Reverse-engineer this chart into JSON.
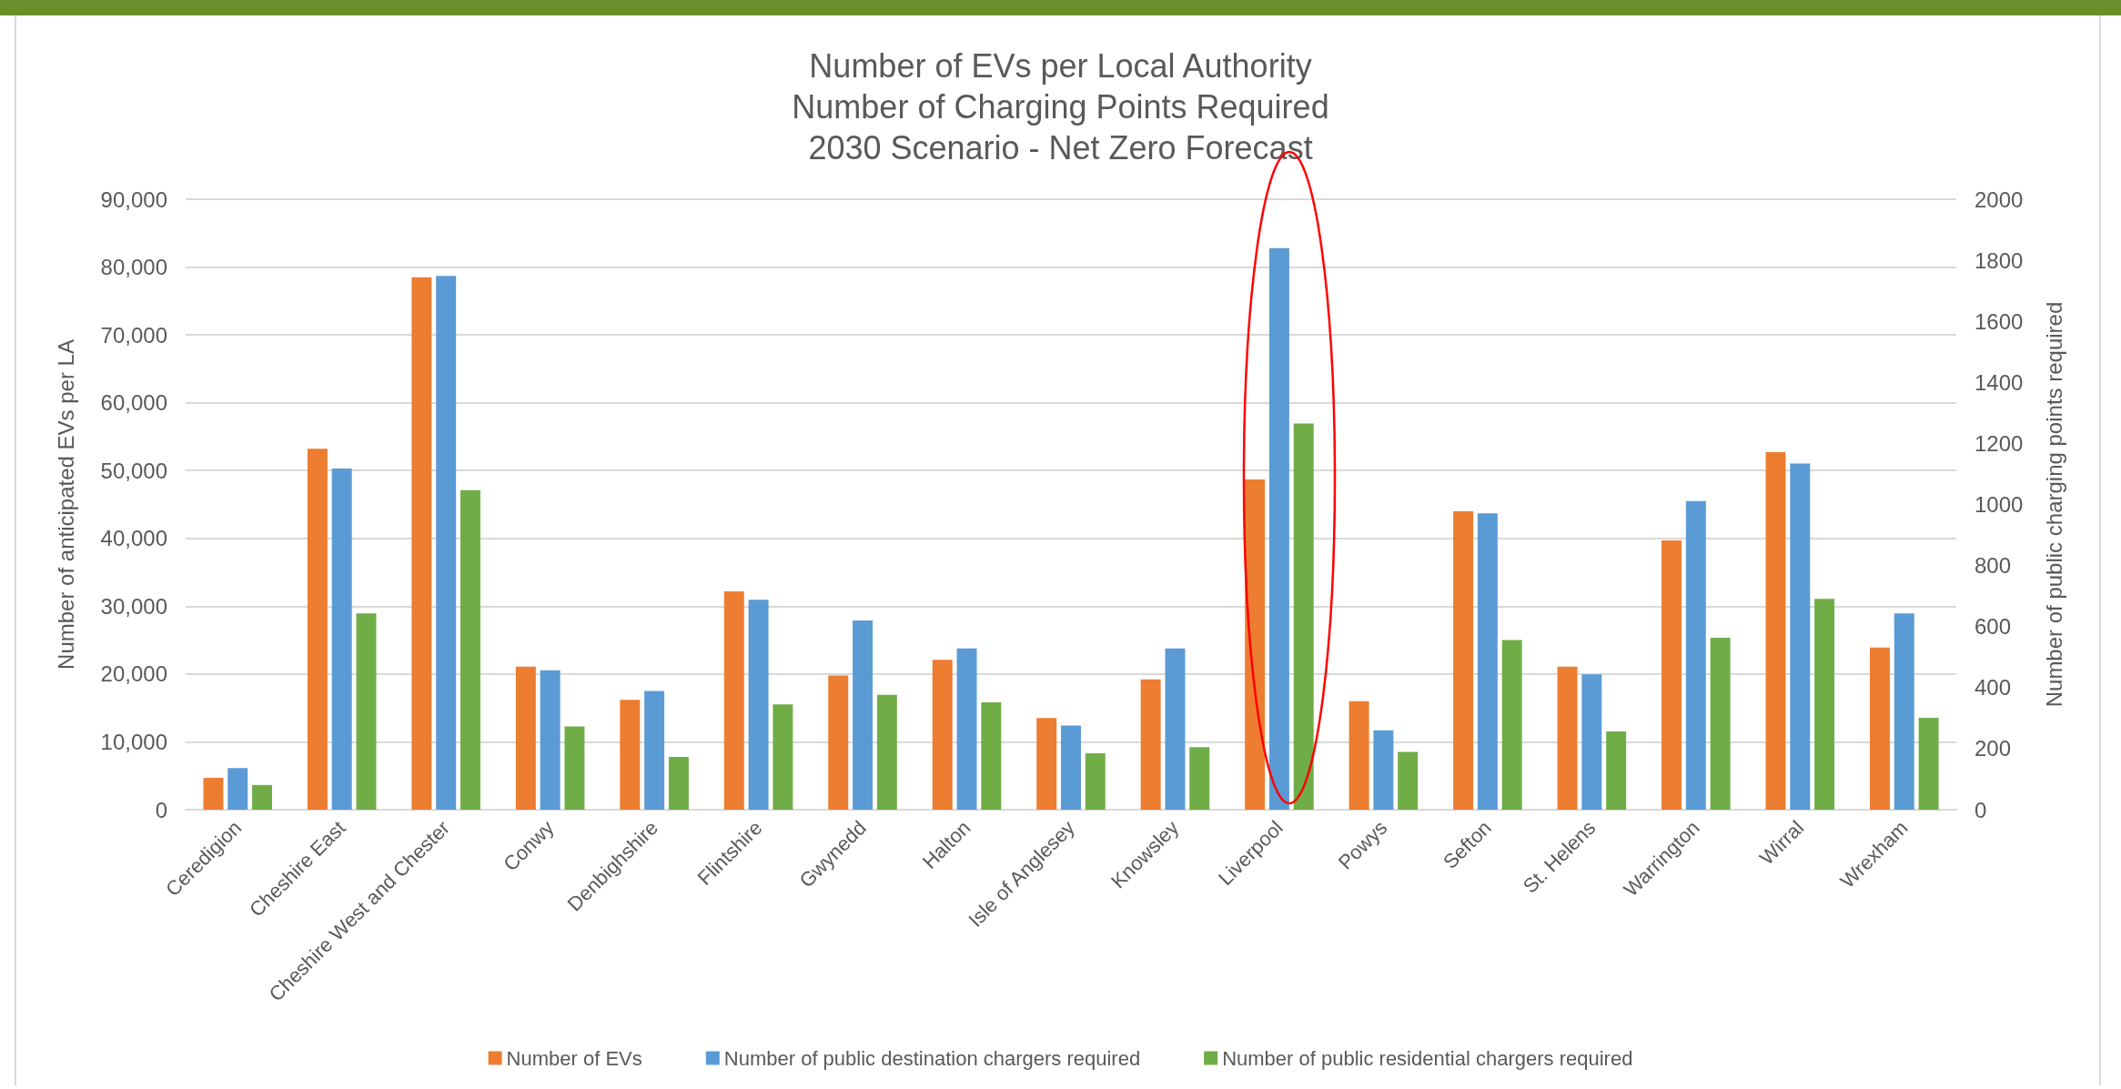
{
  "chart_data": {
    "type": "bar",
    "title": "Number of EVs per Local Authority\nNumber of Charging Points Required\n2030 Scenario - Net Zero Forecast",
    "ylabel": "Number of anticipated EVs per LA",
    "y2label": "Number of public charging points required",
    "categories": [
      "Ceredigion",
      "Cheshire East",
      "Cheshire West and Chester",
      "Conwy",
      "Denbighshire",
      "Flintshire",
      "Gwynedd",
      "Halton",
      "Isle of Anglesey",
      "Knowsley",
      "Liverpool",
      "Powys",
      "Sefton",
      "St. Helens",
      "Warrington",
      "Wirral",
      "Wrexham"
    ],
    "series": [
      {
        "name": "Number of EVs",
        "color": "#ed7d31",
        "values": [
          4700,
          53200,
          78500,
          21100,
          16200,
          32200,
          19800,
          22100,
          13500,
          19200,
          48700,
          16000,
          44000,
          21100,
          39700,
          52700,
          23900
        ]
      },
      {
        "name": "Number of public destination chargers required",
        "color": "#5b9bd5",
        "axis": "y2",
        "values": [
          136,
          1118,
          1749,
          457,
          389,
          688,
          620,
          528,
          276,
          528,
          1840,
          260,
          971,
          443,
          1011,
          1134,
          643
        ]
      },
      {
        "name": "Number of public residential chargers required",
        "color": "#70ad47",
        "axis": "y2",
        "values": [
          81,
          643,
          1047,
          273,
          173,
          345,
          376,
          352,
          185,
          205,
          1265,
          189,
          556,
          256,
          563,
          691,
          301
        ]
      }
    ],
    "ylim": [
      0,
      90000
    ],
    "yticks": [
      {
        "value": 0,
        "label": "0"
      },
      {
        "value": 10000,
        "label": "10,000"
      },
      {
        "value": 20000,
        "label": "20,000"
      },
      {
        "value": 30000,
        "label": "30,000"
      },
      {
        "value": 40000,
        "label": "40,000"
      },
      {
        "value": 50000,
        "label": "50,000"
      },
      {
        "value": 60000,
        "label": "60,000"
      },
      {
        "value": 70000,
        "label": "70,000"
      },
      {
        "value": 80000,
        "label": "80,000"
      },
      {
        "value": 90000,
        "label": "90,000"
      }
    ],
    "y2lim": [
      0,
      2000
    ],
    "y2ticks": [
      0,
      200,
      400,
      600,
      800,
      1000,
      1200,
      1400,
      1600,
      1800,
      2000
    ],
    "grid": "y",
    "legend": "bottom"
  }
}
